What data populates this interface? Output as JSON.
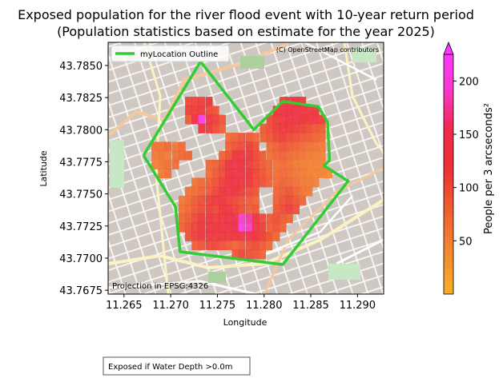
{
  "chart_data": {
    "type": "heatmap",
    "title_line1": "Exposed population for the river flood event with 10-year return period",
    "title_line2": "(Population statistics based on estimate for the year 2025)",
    "xlabel": "Longitude",
    "ylabel": "Latitude",
    "x_ticks": [
      "11.265",
      "11.270",
      "11.275",
      "11.280",
      "11.285",
      "11.290"
    ],
    "y_ticks": [
      "43.7850",
      "43.7825",
      "43.7800",
      "43.7775",
      "43.7750",
      "43.7725",
      "43.7700",
      "43.7675"
    ],
    "xlim": [
      11.2633,
      11.2928
    ],
    "ylim": [
      43.7672,
      43.7868
    ],
    "legend_entries": [
      "myLocation Outline"
    ],
    "legend_color": "#33cc33",
    "attribution": "(C) OpenStreetMap contributors",
    "projection_note": "Projection in EPSG:4326",
    "footnote": "Exposed if Water Depth >0.0m",
    "colorbar": {
      "label": "People per 3 arcseconds²",
      "ticks": [
        "50",
        "100",
        "150",
        "200"
      ],
      "range": [
        0,
        225
      ],
      "colors": [
        "#f9ae26",
        "#f5882f",
        "#f0582f",
        "#ee3035",
        "#f0284a",
        "#fb38cf",
        "#fb35ff"
      ]
    },
    "outline_polygon": [
      [
        11.2671,
        43.778
      ],
      [
        11.2732,
        43.7853
      ],
      [
        11.2789,
        43.78
      ],
      [
        11.282,
        43.7822
      ],
      [
        11.2858,
        43.7818
      ],
      [
        11.2868,
        43.7806
      ],
      [
        11.287,
        43.7776
      ],
      [
        11.2864,
        43.7772
      ],
      [
        11.289,
        43.776
      ],
      [
        11.282,
        43.7695
      ],
      [
        11.271,
        43.7705
      ],
      [
        11.2705,
        43.774
      ],
      [
        11.2671,
        43.778
      ]
    ],
    "cells": [
      [
        11.2719,
        43.7822,
        101
      ],
      [
        11.2726,
        43.7822,
        106
      ],
      [
        11.2733,
        43.7822,
        112
      ],
      [
        11.2741,
        43.7822,
        118
      ],
      [
        11.2719,
        43.7815,
        110
      ],
      [
        11.2726,
        43.7815,
        112
      ],
      [
        11.2733,
        43.7815,
        116
      ],
      [
        11.2741,
        43.7815,
        104
      ],
      [
        11.2748,
        43.7815,
        95
      ],
      [
        11.2719,
        43.7808,
        88
      ],
      [
        11.2726,
        43.7808,
        145
      ],
      [
        11.2733,
        43.7808,
        210
      ],
      [
        11.2741,
        43.7808,
        130
      ],
      [
        11.2748,
        43.7808,
        110
      ],
      [
        11.2755,
        43.7808,
        96
      ],
      [
        11.2733,
        43.7801,
        121
      ],
      [
        11.2741,
        43.7801,
        118
      ],
      [
        11.2748,
        43.7801,
        99
      ],
      [
        11.2755,
        43.7801,
        84
      ],
      [
        11.2683,
        43.7787,
        70
      ],
      [
        11.269,
        43.7787,
        66
      ],
      [
        11.2697,
        43.7787,
        80
      ],
      [
        11.2705,
        43.7787,
        62
      ],
      [
        11.2712,
        43.7787,
        74
      ],
      [
        11.2683,
        43.778,
        59
      ],
      [
        11.269,
        43.778,
        64
      ],
      [
        11.2697,
        43.778,
        57
      ],
      [
        11.2705,
        43.778,
        69
      ],
      [
        11.2712,
        43.778,
        75
      ],
      [
        11.2719,
        43.778,
        80
      ],
      [
        11.2683,
        43.7773,
        54
      ],
      [
        11.269,
        43.7773,
        61
      ],
      [
        11.2697,
        43.7773,
        68
      ],
      [
        11.2705,
        43.7773,
        72
      ],
      [
        11.269,
        43.7766,
        58
      ],
      [
        11.2697,
        43.7766,
        66
      ],
      [
        11.2762,
        43.7794,
        72
      ],
      [
        11.2769,
        43.7794,
        81
      ],
      [
        11.2776,
        43.7794,
        92
      ],
      [
        11.2784,
        43.7794,
        88
      ],
      [
        11.2791,
        43.7794,
        79
      ],
      [
        11.2762,
        43.7787,
        85
      ],
      [
        11.2769,
        43.7787,
        96
      ],
      [
        11.2776,
        43.7787,
        104
      ],
      [
        11.2784,
        43.7787,
        112
      ],
      [
        11.2791,
        43.7787,
        97
      ],
      [
        11.2755,
        43.778,
        79
      ],
      [
        11.2762,
        43.778,
        94
      ],
      [
        11.2769,
        43.778,
        120
      ],
      [
        11.2776,
        43.778,
        131
      ],
      [
        11.2784,
        43.778,
        118
      ],
      [
        11.2791,
        43.778,
        104
      ],
      [
        11.2798,
        43.778,
        86
      ],
      [
        11.2741,
        43.7773,
        75
      ],
      [
        11.2748,
        43.7773,
        82
      ],
      [
        11.2755,
        43.7773,
        99
      ],
      [
        11.2762,
        43.7773,
        126
      ],
      [
        11.2769,
        43.7773,
        137
      ],
      [
        11.2776,
        43.7773,
        124
      ],
      [
        11.2784,
        43.7773,
        115
      ],
      [
        11.2791,
        43.7773,
        101
      ],
      [
        11.2798,
        43.7773,
        88
      ],
      [
        11.2805,
        43.7773,
        77
      ],
      [
        11.2741,
        43.7766,
        70
      ],
      [
        11.2748,
        43.7766,
        89
      ],
      [
        11.2755,
        43.7766,
        103
      ],
      [
        11.2762,
        43.7766,
        118
      ],
      [
        11.2769,
        43.7766,
        129
      ],
      [
        11.2776,
        43.7766,
        134
      ],
      [
        11.2784,
        43.7766,
        119
      ],
      [
        11.2791,
        43.7766,
        106
      ],
      [
        11.2798,
        43.7766,
        93
      ],
      [
        11.2805,
        43.7766,
        81
      ],
      [
        11.2726,
        43.7759,
        66
      ],
      [
        11.2733,
        43.7759,
        74
      ],
      [
        11.2741,
        43.7759,
        85
      ],
      [
        11.2748,
        43.7759,
        96
      ],
      [
        11.2755,
        43.7759,
        111
      ],
      [
        11.2762,
        43.7759,
        126
      ],
      [
        11.2769,
        43.7759,
        140
      ],
      [
        11.2776,
        43.7759,
        128
      ],
      [
        11.2784,
        43.7759,
        117
      ],
      [
        11.2791,
        43.7759,
        104
      ],
      [
        11.2798,
        43.7759,
        96
      ],
      [
        11.2805,
        43.7759,
        82
      ],
      [
        11.2719,
        43.7752,
        62
      ],
      [
        11.2726,
        43.7752,
        70
      ],
      [
        11.2733,
        43.7752,
        83
      ],
      [
        11.2741,
        43.7752,
        92
      ],
      [
        11.2748,
        43.7752,
        105
      ],
      [
        11.2755,
        43.7752,
        119
      ],
      [
        11.2762,
        43.7752,
        132
      ],
      [
        11.2769,
        43.7752,
        124
      ],
      [
        11.2776,
        43.7752,
        113
      ],
      [
        11.2784,
        43.7752,
        101
      ],
      [
        11.2791,
        43.7752,
        94
      ],
      [
        11.2712,
        43.7745,
        60
      ],
      [
        11.2719,
        43.7745,
        72
      ],
      [
        11.2726,
        43.7745,
        88
      ],
      [
        11.2733,
        43.7745,
        99
      ],
      [
        11.2741,
        43.7745,
        110
      ],
      [
        11.2748,
        43.7745,
        121
      ],
      [
        11.2755,
        43.7745,
        118
      ],
      [
        11.2762,
        43.7745,
        109
      ],
      [
        11.2769,
        43.7745,
        103
      ],
      [
        11.2776,
        43.7745,
        96
      ],
      [
        11.2784,
        43.7745,
        89
      ],
      [
        11.2791,
        43.7745,
        80
      ],
      [
        11.2712,
        43.7738,
        65
      ],
      [
        11.2719,
        43.7738,
        79
      ],
      [
        11.2726,
        43.7738,
        91
      ],
      [
        11.2733,
        43.7738,
        104
      ],
      [
        11.2741,
        43.7738,
        112
      ],
      [
        11.2748,
        43.7738,
        106
      ],
      [
        11.2755,
        43.7738,
        117
      ],
      [
        11.2762,
        43.7738,
        122
      ],
      [
        11.2769,
        43.7738,
        111
      ],
      [
        11.2776,
        43.7738,
        98
      ],
      [
        11.2784,
        43.7738,
        86
      ],
      [
        11.2791,
        43.7738,
        92
      ],
      [
        11.2712,
        43.7731,
        73
      ],
      [
        11.2719,
        43.7731,
        86
      ],
      [
        11.2726,
        43.7731,
        102
      ],
      [
        11.2733,
        43.7731,
        116
      ],
      [
        11.2741,
        43.7731,
        121
      ],
      [
        11.2748,
        43.7731,
        112
      ],
      [
        11.2755,
        43.7731,
        124
      ],
      [
        11.2762,
        43.7731,
        135
      ],
      [
        11.2769,
        43.7731,
        146
      ],
      [
        11.2776,
        43.7731,
        191
      ],
      [
        11.2784,
        43.7731,
        176
      ],
      [
        11.2791,
        43.7731,
        128
      ],
      [
        11.2798,
        43.7731,
        104
      ],
      [
        11.2712,
        43.7724,
        81
      ],
      [
        11.2719,
        43.7724,
        96
      ],
      [
        11.2726,
        43.7724,
        108
      ],
      [
        11.2733,
        43.7724,
        119
      ],
      [
        11.2741,
        43.7724,
        125
      ],
      [
        11.2748,
        43.7724,
        120
      ],
      [
        11.2755,
        43.7724,
        129
      ],
      [
        11.2762,
        43.7724,
        141
      ],
      [
        11.2769,
        43.7724,
        152
      ],
      [
        11.2776,
        43.7724,
        205
      ],
      [
        11.2784,
        43.7724,
        188
      ],
      [
        11.2791,
        43.7724,
        136
      ],
      [
        11.2798,
        43.7724,
        110
      ],
      [
        11.2719,
        43.7717,
        95
      ],
      [
        11.2726,
        43.7717,
        109
      ],
      [
        11.2733,
        43.7717,
        121
      ],
      [
        11.2741,
        43.7717,
        128
      ],
      [
        11.2748,
        43.7717,
        115
      ],
      [
        11.2755,
        43.7717,
        119
      ],
      [
        11.2762,
        43.7717,
        123
      ],
      [
        11.2769,
        43.7717,
        117
      ],
      [
        11.2776,
        43.7717,
        130
      ],
      [
        11.2784,
        43.7717,
        141
      ],
      [
        11.2791,
        43.7717,
        124
      ],
      [
        11.2798,
        43.7717,
        112
      ],
      [
        11.2805,
        43.7717,
        98
      ],
      [
        11.2726,
        43.771,
        84
      ],
      [
        11.2733,
        43.771,
        92
      ],
      [
        11.2741,
        43.771,
        101
      ],
      [
        11.2748,
        43.771,
        106
      ],
      [
        11.2755,
        43.771,
        96
      ],
      [
        11.2762,
        43.771,
        88
      ],
      [
        11.2769,
        43.771,
        77
      ],
      [
        11.2776,
        43.771,
        86
      ],
      [
        11.2784,
        43.771,
        95
      ],
      [
        11.2791,
        43.771,
        101
      ],
      [
        11.2798,
        43.771,
        90
      ],
      [
        11.2805,
        43.771,
        74
      ],
      [
        11.2769,
        43.7703,
        92
      ],
      [
        11.2776,
        43.7703,
        104
      ],
      [
        11.2784,
        43.7703,
        98
      ],
      [
        11.2791,
        43.7703,
        91
      ],
      [
        11.2798,
        43.7703,
        83
      ],
      [
        11.282,
        43.7822,
        112
      ],
      [
        11.2827,
        43.7822,
        118
      ],
      [
        11.2834,
        43.7822,
        125
      ],
      [
        11.2841,
        43.7822,
        120
      ],
      [
        11.2813,
        43.7815,
        118
      ],
      [
        11.282,
        43.7815,
        130
      ],
      [
        11.2827,
        43.7815,
        142
      ],
      [
        11.2834,
        43.7815,
        135
      ],
      [
        11.2841,
        43.7815,
        127
      ],
      [
        11.2848,
        43.7815,
        121
      ],
      [
        11.2855,
        43.7815,
        117
      ],
      [
        11.2806,
        43.7808,
        102
      ],
      [
        11.2813,
        43.7808,
        115
      ],
      [
        11.282,
        43.7808,
        126
      ],
      [
        11.2827,
        43.7808,
        138
      ],
      [
        11.2834,
        43.7808,
        130
      ],
      [
        11.2841,
        43.7808,
        124
      ],
      [
        11.2848,
        43.7808,
        117
      ],
      [
        11.2855,
        43.7808,
        130
      ],
      [
        11.2862,
        43.7808,
        108
      ],
      [
        11.2799,
        43.7801,
        89
      ],
      [
        11.2806,
        43.7801,
        101
      ],
      [
        11.2813,
        43.7801,
        113
      ],
      [
        11.282,
        43.7801,
        121
      ],
      [
        11.2827,
        43.7801,
        118
      ],
      [
        11.2834,
        43.7801,
        112
      ],
      [
        11.2841,
        43.7801,
        108
      ],
      [
        11.2848,
        43.7801,
        100
      ],
      [
        11.2855,
        43.7801,
        93
      ],
      [
        11.2862,
        43.7801,
        86
      ],
      [
        11.2799,
        43.7794,
        82
      ],
      [
        11.2806,
        43.7794,
        94
      ],
      [
        11.2813,
        43.7794,
        105
      ],
      [
        11.282,
        43.7794,
        112
      ],
      [
        11.2827,
        43.7794,
        104
      ],
      [
        11.2834,
        43.7794,
        98
      ],
      [
        11.2841,
        43.7794,
        92
      ],
      [
        11.2848,
        43.7794,
        87
      ],
      [
        11.2855,
        43.7794,
        79
      ],
      [
        11.2862,
        43.7794,
        72
      ],
      [
        11.2806,
        43.7787,
        74
      ],
      [
        11.2813,
        43.7787,
        85
      ],
      [
        11.282,
        43.7787,
        96
      ],
      [
        11.2827,
        43.7787,
        88
      ],
      [
        11.2834,
        43.7787,
        79
      ],
      [
        11.2841,
        43.7787,
        73
      ],
      [
        11.2848,
        43.7787,
        67
      ],
      [
        11.2855,
        43.7787,
        63
      ],
      [
        11.2862,
        43.7787,
        58
      ],
      [
        11.2806,
        43.778,
        70
      ],
      [
        11.2813,
        43.778,
        77
      ],
      [
        11.282,
        43.778,
        82
      ],
      [
        11.2827,
        43.778,
        74
      ],
      [
        11.2834,
        43.778,
        68
      ],
      [
        11.2841,
        43.778,
        62
      ],
      [
        11.2848,
        43.778,
        58
      ],
      [
        11.2855,
        43.778,
        55
      ],
      [
        11.2862,
        43.778,
        52
      ],
      [
        11.2813,
        43.7773,
        66
      ],
      [
        11.282,
        43.7773,
        72
      ],
      [
        11.2827,
        43.7773,
        65
      ],
      [
        11.2834,
        43.7773,
        59
      ],
      [
        11.2841,
        43.7773,
        54
      ],
      [
        11.2848,
        43.7773,
        51
      ],
      [
        11.2855,
        43.7773,
        48
      ],
      [
        11.2862,
        43.7773,
        46
      ],
      [
        11.2813,
        43.7766,
        68
      ],
      [
        11.282,
        43.7766,
        74
      ],
      [
        11.2827,
        43.7766,
        70
      ],
      [
        11.2834,
        43.7766,
        62
      ],
      [
        11.2841,
        43.7766,
        57
      ],
      [
        11.2848,
        43.7766,
        53
      ],
      [
        11.2855,
        43.7766,
        50
      ],
      [
        11.2862,
        43.7766,
        47
      ],
      [
        11.2869,
        43.7766,
        45
      ],
      [
        11.2813,
        43.7759,
        72
      ],
      [
        11.282,
        43.7759,
        80
      ],
      [
        11.2827,
        43.7759,
        74
      ],
      [
        11.2834,
        43.7759,
        66
      ],
      [
        11.2841,
        43.7759,
        60
      ],
      [
        11.2848,
        43.7759,
        56
      ],
      [
        11.2855,
        43.7759,
        52
      ],
      [
        11.2813,
        43.7752,
        79
      ],
      [
        11.282,
        43.7752,
        88
      ],
      [
        11.2827,
        43.7752,
        95
      ],
      [
        11.2834,
        43.7752,
        78
      ],
      [
        11.2841,
        43.7752,
        66
      ],
      [
        11.2848,
        43.7752,
        60
      ],
      [
        11.2813,
        43.7745,
        85
      ],
      [
        11.282,
        43.7745,
        96
      ],
      [
        11.2827,
        43.7745,
        104
      ],
      [
        11.2834,
        43.7745,
        92
      ],
      [
        11.2841,
        43.7745,
        76
      ],
      [
        11.2813,
        43.7738,
        89
      ],
      [
        11.282,
        43.7738,
        101
      ],
      [
        11.2827,
        43.7738,
        110
      ],
      [
        11.2834,
        43.7738,
        98
      ],
      [
        11.2806,
        43.7731,
        92
      ],
      [
        11.2813,
        43.7731,
        97
      ],
      [
        11.282,
        43.7731,
        86
      ],
      [
        11.2827,
        43.7731,
        80
      ],
      [
        11.2806,
        43.7724,
        88
      ],
      [
        11.2813,
        43.7724,
        95
      ],
      [
        11.282,
        43.7724,
        82
      ],
      [
        11.2806,
        43.7717,
        84
      ],
      [
        11.2813,
        43.7717,
        79
      ]
    ]
  }
}
